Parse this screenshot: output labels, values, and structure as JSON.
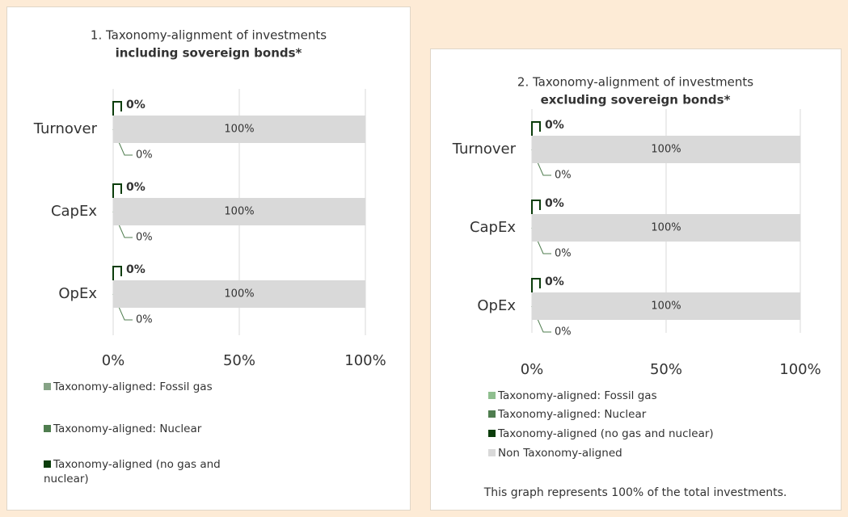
{
  "chart_data": [
    {
      "type": "bar",
      "orientation": "horizontal",
      "stacked": true,
      "title": "1. Taxonomy-alignment of investments",
      "subtitle": "including sovereign bonds*",
      "categories": [
        "Turnover",
        "CapEx",
        "OpEx"
      ],
      "series": [
        {
          "name": "Taxonomy-aligned: Fossil gas",
          "color": "#86a386",
          "values": [
            0,
            0,
            0
          ],
          "value_labels": [
            "0%",
            "0%",
            "0%"
          ]
        },
        {
          "name": "Taxonomy-aligned: Nuclear",
          "color": "#4f7d4f",
          "values": [
            0,
            0,
            0
          ],
          "value_labels": [
            "0%",
            "0%",
            "0%"
          ]
        },
        {
          "name": "Taxonomy-aligned (no gas and nuclear)",
          "color": "#0b3d0b",
          "values": [
            0,
            0,
            0
          ],
          "value_labels": [
            "0%",
            "0%",
            "0%"
          ]
        },
        {
          "color": "#d9d9d9",
          "values": [
            100,
            100,
            100
          ],
          "value_labels": [
            "100%",
            "100%",
            "100%"
          ]
        }
      ],
      "xlim": [
        0,
        100
      ],
      "xticks": [
        {
          "value": 0,
          "label": "0%"
        },
        {
          "value": 50,
          "label": "50%"
        },
        {
          "value": 100,
          "label": "100%"
        }
      ],
      "grid": true,
      "legend": "bottom"
    },
    {
      "type": "bar",
      "orientation": "horizontal",
      "stacked": true,
      "title": "2. Taxonomy-alignment of investments",
      "subtitle": "excluding sovereign bonds*",
      "categories": [
        "Turnover",
        "CapEx",
        "OpEx"
      ],
      "series": [
        {
          "name": "Taxonomy-aligned: Fossil gas",
          "color": "#8fbf8f",
          "values": [
            0,
            0,
            0
          ],
          "value_labels": [
            "0%",
            "0%",
            "0%"
          ]
        },
        {
          "name": "Taxonomy-aligned: Nuclear",
          "color": "#4f7d4f",
          "values": [
            0,
            0,
            0
          ],
          "value_labels": [
            "0%",
            "0%",
            "0%"
          ]
        },
        {
          "name": "Taxonomy-aligned (no gas and nuclear)",
          "color": "#0b3d0b",
          "values": [
            0,
            0,
            0
          ],
          "value_labels": [
            "0%",
            "0%",
            "0%"
          ]
        },
        {
          "name": "Non Taxonomy-aligned",
          "color": "#d9d9d9",
          "values": [
            100,
            100,
            100
          ],
          "value_labels": [
            "100%",
            "100%",
            "100%"
          ]
        }
      ],
      "xlim": [
        0,
        100
      ],
      "xticks": [
        {
          "value": 0,
          "label": "0%"
        },
        {
          "value": 50,
          "label": "50%"
        },
        {
          "value": 100,
          "label": "100%"
        }
      ],
      "grid": true,
      "legend": "bottom",
      "note": "This graph represents 100% of the total investments."
    }
  ]
}
